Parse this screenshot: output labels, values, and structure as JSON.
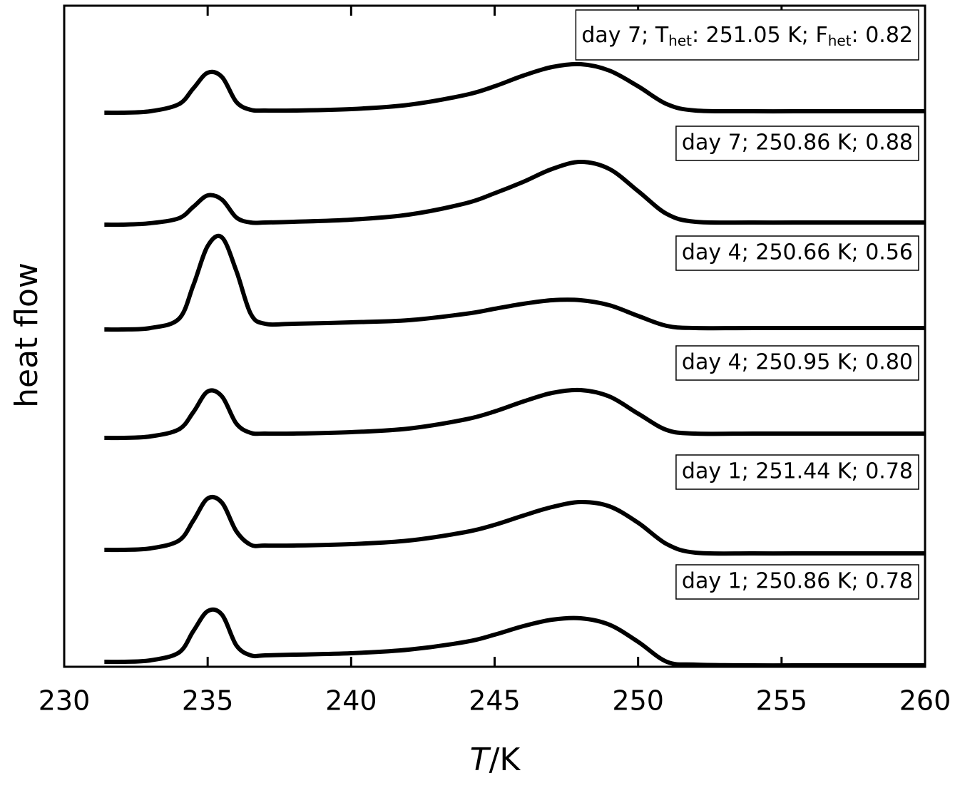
{
  "chart_data": {
    "type": "line",
    "x_label": {
      "italic": "T",
      "rest": "/K"
    },
    "y_label": "heat flow",
    "x": [
      231.4,
      232,
      233,
      234,
      234.5,
      235,
      235.5,
      236,
      236.5,
      237,
      238,
      240,
      242,
      244,
      245,
      246,
      247,
      248,
      249,
      250,
      251,
      252,
      254,
      256,
      258,
      260
    ],
    "xlim": [
      230,
      260
    ],
    "xticks": [
      230,
      235,
      240,
      245,
      250,
      255,
      260
    ],
    "ylim": [
      0,
      927
    ],
    "series": [
      {
        "name": "day 1; 250.86 K; 0.78",
        "color": "#000000",
        "values": [
          7,
          7,
          9,
          20,
          50,
          78,
          73,
          30,
          16,
          16,
          17,
          19,
          24,
          35,
          45,
          57,
          66,
          68,
          59,
          35,
          7,
          3,
          2,
          2,
          2,
          2
        ]
      },
      {
        "name": "day 1; 251.44 K; 0.78",
        "color": "#000000",
        "values": [
          164,
          164,
          166,
          177,
          205,
          236,
          230,
          190,
          171,
          170,
          170,
          172,
          177,
          189,
          199,
          212,
          224,
          231,
          225,
          202,
          172,
          160,
          159,
          159,
          159,
          159
        ]
      },
      {
        "name": "day 4; 250.95 K; 0.80",
        "color": "#000000",
        "values": [
          321,
          321,
          323,
          333,
          357,
          386,
          379,
          341,
          328,
          327,
          327,
          329,
          334,
          347,
          358,
          372,
          384,
          388,
          379,
          355,
          332,
          327,
          327,
          327,
          327,
          327
        ]
      },
      {
        "name": "day 4; 250.66 K; 0.56",
        "color": "#000000",
        "values": [
          473,
          473,
          475,
          488,
          535,
          590,
          602,
          555,
          495,
          481,
          481,
          483,
          486,
          495,
          502,
          509,
          514,
          514,
          507,
          492,
          478,
          475,
          475,
          475,
          475,
          475
        ]
      },
      {
        "name": "day 7; 250.86 K; 0.88",
        "color": "#000000",
        "values": [
          620,
          620,
          622,
          629,
          645,
          661,
          655,
          630,
          623,
          623,
          624,
          627,
          634,
          650,
          664,
          680,
          698,
          708,
          698,
          667,
          635,
          624,
          623,
          623,
          623,
          623
        ]
      },
      {
        "name_parts": [
          "day 7; T",
          "het",
          ": 251.05 K; F",
          "het",
          ": 0.82"
        ],
        "color": "#000000",
        "values": [
          777,
          777,
          779,
          789,
          811,
          833,
          827,
          792,
          781,
          780,
          780,
          782,
          788,
          802,
          814,
          829,
          841,
          845,
          836,
          814,
          789,
          780,
          779,
          779,
          779,
          779
        ]
      }
    ]
  }
}
